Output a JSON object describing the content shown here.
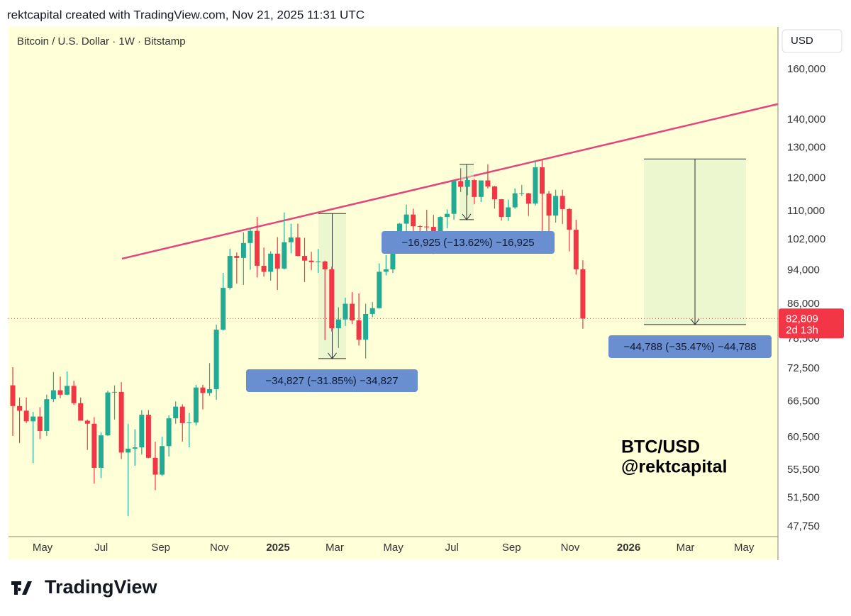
{
  "header": "rektcapital created with TradingView.com, Nov 21, 2025 11:31 UTC",
  "chart_data": {
    "type": "candlestick",
    "title": "Bitcoin / U.S. Dollar · 1W · Bitstamp",
    "currency": "USD",
    "log": true,
    "up_color": "#22ab94",
    "down_color": "#f23645",
    "background": "#ffffd8",
    "ylim": [
      46520,
      179000
    ],
    "yticks": [
      {
        "value": 160000,
        "label": "160,000"
      },
      {
        "value": 140000,
        "label": "140,000"
      },
      {
        "value": 130000,
        "label": "130,000"
      },
      {
        "value": 120000,
        "label": "120,000"
      },
      {
        "value": 110000,
        "label": "110,000"
      },
      {
        "value": 102000,
        "label": "102,000"
      },
      {
        "value": 94000,
        "label": "94,000"
      },
      {
        "value": 86000,
        "label": "86,000"
      },
      {
        "value": 78500,
        "label": "78,500"
      },
      {
        "value": 72500,
        "label": "72,500"
      },
      {
        "value": 66500,
        "label": "66,500"
      },
      {
        "value": 60500,
        "label": "60,500"
      },
      {
        "value": 55500,
        "label": "55,500"
      },
      {
        "value": 51500,
        "label": "51,500"
      },
      {
        "value": 47750,
        "label": "47,750"
      }
    ],
    "xticks": [
      {
        "value": "2024-05",
        "label": "May"
      },
      {
        "value": "2024-07",
        "label": "Jul"
      },
      {
        "value": "2024-09",
        "label": "Sep"
      },
      {
        "value": "2024-11",
        "label": "Nov"
      },
      {
        "value": "2025-01",
        "label": "2025"
      },
      {
        "value": "2025-03",
        "label": "Mar"
      },
      {
        "value": "2025-05",
        "label": "May"
      },
      {
        "value": "2025-07",
        "label": "Jul"
      },
      {
        "value": "2025-09",
        "label": "Sep"
      },
      {
        "value": "2025-11",
        "label": "Nov"
      },
      {
        "value": "2026-01",
        "label": "2026"
      },
      {
        "value": "2026-03",
        "label": "Mar"
      },
      {
        "value": "2026-05",
        "label": "May"
      }
    ],
    "candles": [
      {
        "o": 69400,
        "h": 72800,
        "l": 60700,
        "c": 65700
      },
      {
        "o": 65700,
        "h": 67200,
        "l": 59600,
        "c": 64900
      },
      {
        "o": 64900,
        "h": 67200,
        "l": 62800,
        "c": 63100
      },
      {
        "o": 63100,
        "h": 64700,
        "l": 56500,
        "c": 63900
      },
      {
        "o": 63900,
        "h": 65500,
        "l": 60200,
        "c": 61500
      },
      {
        "o": 61500,
        "h": 67700,
        "l": 60700,
        "c": 66900
      },
      {
        "o": 66900,
        "h": 71900,
        "l": 66400,
        "c": 68500
      },
      {
        "o": 68500,
        "h": 71000,
        "l": 67100,
        "c": 67700
      },
      {
        "o": 67700,
        "h": 72000,
        "l": 67600,
        "c": 69300
      },
      {
        "o": 69300,
        "h": 70200,
        "l": 65900,
        "c": 66200
      },
      {
        "o": 66200,
        "h": 67200,
        "l": 63400,
        "c": 63200
      },
      {
        "o": 63200,
        "h": 63400,
        "l": 58500,
        "c": 62700
      },
      {
        "o": 62700,
        "h": 63800,
        "l": 53500,
        "c": 55800
      },
      {
        "o": 55800,
        "h": 61300,
        "l": 54300,
        "c": 60800
      },
      {
        "o": 60800,
        "h": 68400,
        "l": 60700,
        "c": 68100
      },
      {
        "o": 68100,
        "h": 69400,
        "l": 63400,
        "c": 68200
      },
      {
        "o": 68200,
        "h": 70000,
        "l": 57100,
        "c": 58100
      },
      {
        "o": 58100,
        "h": 62700,
        "l": 49100,
        "c": 58700
      },
      {
        "o": 58700,
        "h": 61800,
        "l": 56100,
        "c": 58900
      },
      {
        "o": 58900,
        "h": 65000,
        "l": 57800,
        "c": 64200
      },
      {
        "o": 64200,
        "h": 65000,
        "l": 57200,
        "c": 57300
      },
      {
        "o": 57300,
        "h": 59800,
        "l": 52600,
        "c": 54800
      },
      {
        "o": 54800,
        "h": 60600,
        "l": 54600,
        "c": 59100
      },
      {
        "o": 59100,
        "h": 64100,
        "l": 57500,
        "c": 63600
      },
      {
        "o": 63600,
        "h": 66500,
        "l": 62700,
        "c": 65600
      },
      {
        "o": 65600,
        "h": 66000,
        "l": 59800,
        "c": 62800
      },
      {
        "o": 62800,
        "h": 64500,
        "l": 58900,
        "c": 62900
      },
      {
        "o": 62900,
        "h": 69500,
        "l": 62400,
        "c": 69000
      },
      {
        "o": 69000,
        "h": 69500,
        "l": 65100,
        "c": 68000
      },
      {
        "o": 68000,
        "h": 73600,
        "l": 67500,
        "c": 68700
      },
      {
        "o": 68700,
        "h": 81500,
        "l": 66800,
        "c": 80400
      },
      {
        "o": 80400,
        "h": 93400,
        "l": 80200,
        "c": 89800
      },
      {
        "o": 89800,
        "h": 99600,
        "l": 89400,
        "c": 97700
      },
      {
        "o": 97700,
        "h": 98600,
        "l": 90800,
        "c": 97200
      },
      {
        "o": 97200,
        "h": 104000,
        "l": 90500,
        "c": 101100
      },
      {
        "o": 101100,
        "h": 105200,
        "l": 94200,
        "c": 104400
      },
      {
        "o": 104400,
        "h": 108300,
        "l": 92300,
        "c": 95200
      },
      {
        "o": 95200,
        "h": 99900,
        "l": 92500,
        "c": 93700
      },
      {
        "o": 93700,
        "h": 98900,
        "l": 91500,
        "c": 98300
      },
      {
        "o": 98300,
        "h": 102700,
        "l": 89300,
        "c": 94500
      },
      {
        "o": 94500,
        "h": 109600,
        "l": 94300,
        "c": 101300
      },
      {
        "o": 101300,
        "h": 106400,
        "l": 98400,
        "c": 102600
      },
      {
        "o": 102600,
        "h": 106400,
        "l": 97600,
        "c": 97700
      },
      {
        "o": 97700,
        "h": 102500,
        "l": 91200,
        "c": 96500
      },
      {
        "o": 96500,
        "h": 98800,
        "l": 94100,
        "c": 96100
      },
      {
        "o": 96100,
        "h": 99500,
        "l": 93400,
        "c": 96300
      },
      {
        "o": 96300,
        "h": 96500,
        "l": 78200,
        "c": 94300
      },
      {
        "o": 94300,
        "h": 95000,
        "l": 80000,
        "c": 80700
      },
      {
        "o": 80700,
        "h": 85300,
        "l": 76600,
        "c": 82600
      },
      {
        "o": 82600,
        "h": 87500,
        "l": 81200,
        "c": 86100
      },
      {
        "o": 86100,
        "h": 88800,
        "l": 81600,
        "c": 82400
      },
      {
        "o": 82400,
        "h": 88500,
        "l": 77100,
        "c": 78300
      },
      {
        "o": 78300,
        "h": 86100,
        "l": 74500,
        "c": 83800
      },
      {
        "o": 83800,
        "h": 86500,
        "l": 83100,
        "c": 85100
      },
      {
        "o": 85100,
        "h": 95800,
        "l": 85100,
        "c": 93700
      },
      {
        "o": 93700,
        "h": 97900,
        "l": 92800,
        "c": 94300
      },
      {
        "o": 94300,
        "h": 104300,
        "l": 93400,
        "c": 104000
      },
      {
        "o": 104000,
        "h": 106600,
        "l": 100700,
        "c": 106400
      },
      {
        "o": 106400,
        "h": 111900,
        "l": 102000,
        "c": 109000
      },
      {
        "o": 109000,
        "h": 110700,
        "l": 103100,
        "c": 105700
      },
      {
        "o": 105700,
        "h": 106000,
        "l": 100400,
        "c": 105600
      },
      {
        "o": 105600,
        "h": 110400,
        "l": 102700,
        "c": 105500
      },
      {
        "o": 105500,
        "h": 108900,
        "l": 98200,
        "c": 100900
      },
      {
        "o": 100900,
        "h": 108500,
        "l": 99600,
        "c": 108300
      },
      {
        "o": 108300,
        "h": 110500,
        "l": 105100,
        "c": 109200
      },
      {
        "o": 109200,
        "h": 119500,
        "l": 107500,
        "c": 119100
      },
      {
        "o": 119100,
        "h": 123200,
        "l": 115700,
        "c": 117300
      },
      {
        "o": 117300,
        "h": 120200,
        "l": 114700,
        "c": 119400
      },
      {
        "o": 119400,
        "h": 119800,
        "l": 112000,
        "c": 114200
      },
      {
        "o": 114200,
        "h": 119300,
        "l": 112700,
        "c": 119300
      },
      {
        "o": 119300,
        "h": 124500,
        "l": 116800,
        "c": 117400
      },
      {
        "o": 117400,
        "h": 117600,
        "l": 110700,
        "c": 113500
      },
      {
        "o": 113500,
        "h": 113600,
        "l": 107300,
        "c": 108300
      },
      {
        "o": 108300,
        "h": 113400,
        "l": 107200,
        "c": 111100
      },
      {
        "o": 111100,
        "h": 116800,
        "l": 110700,
        "c": 115300
      },
      {
        "o": 115300,
        "h": 117900,
        "l": 114500,
        "c": 115300
      },
      {
        "o": 115300,
        "h": 115400,
        "l": 108600,
        "c": 112200
      },
      {
        "o": 112200,
        "h": 125700,
        "l": 111600,
        "c": 123500
      },
      {
        "o": 123500,
        "h": 126200,
        "l": 102000,
        "c": 115200
      },
      {
        "o": 115200,
        "h": 116000,
        "l": 103500,
        "c": 108700
      },
      {
        "o": 108700,
        "h": 116400,
        "l": 106700,
        "c": 114500
      },
      {
        "o": 114500,
        "h": 116400,
        "l": 106300,
        "c": 110600
      },
      {
        "o": 110600,
        "h": 110900,
        "l": 98900,
        "c": 104700
      },
      {
        "o": 104700,
        "h": 107500,
        "l": 93000,
        "c": 94300
      },
      {
        "o": 94300,
        "h": 96600,
        "l": 80600,
        "c": 82809
      }
    ],
    "last_price": {
      "value": 82809,
      "label": "82,809",
      "countdown": "2d 13h"
    },
    "trendline": {
      "color": "#e5457a",
      "values": [
        97000,
        146000
      ]
    },
    "measures": [
      {
        "from": 109300,
        "to": 74473,
        "label": "−34,827 (−31.85%) −34,827"
      },
      {
        "from": 124457,
        "to": 107532,
        "label": "−16,925 (−13.62%) −16,925"
      },
      {
        "from": 126272,
        "to": 81484,
        "label": "−44,788 (−35.47%) −44,788"
      }
    ],
    "watermark": [
      "BTC/USD",
      "@rektcapital"
    ]
  },
  "footer": "TradingView"
}
